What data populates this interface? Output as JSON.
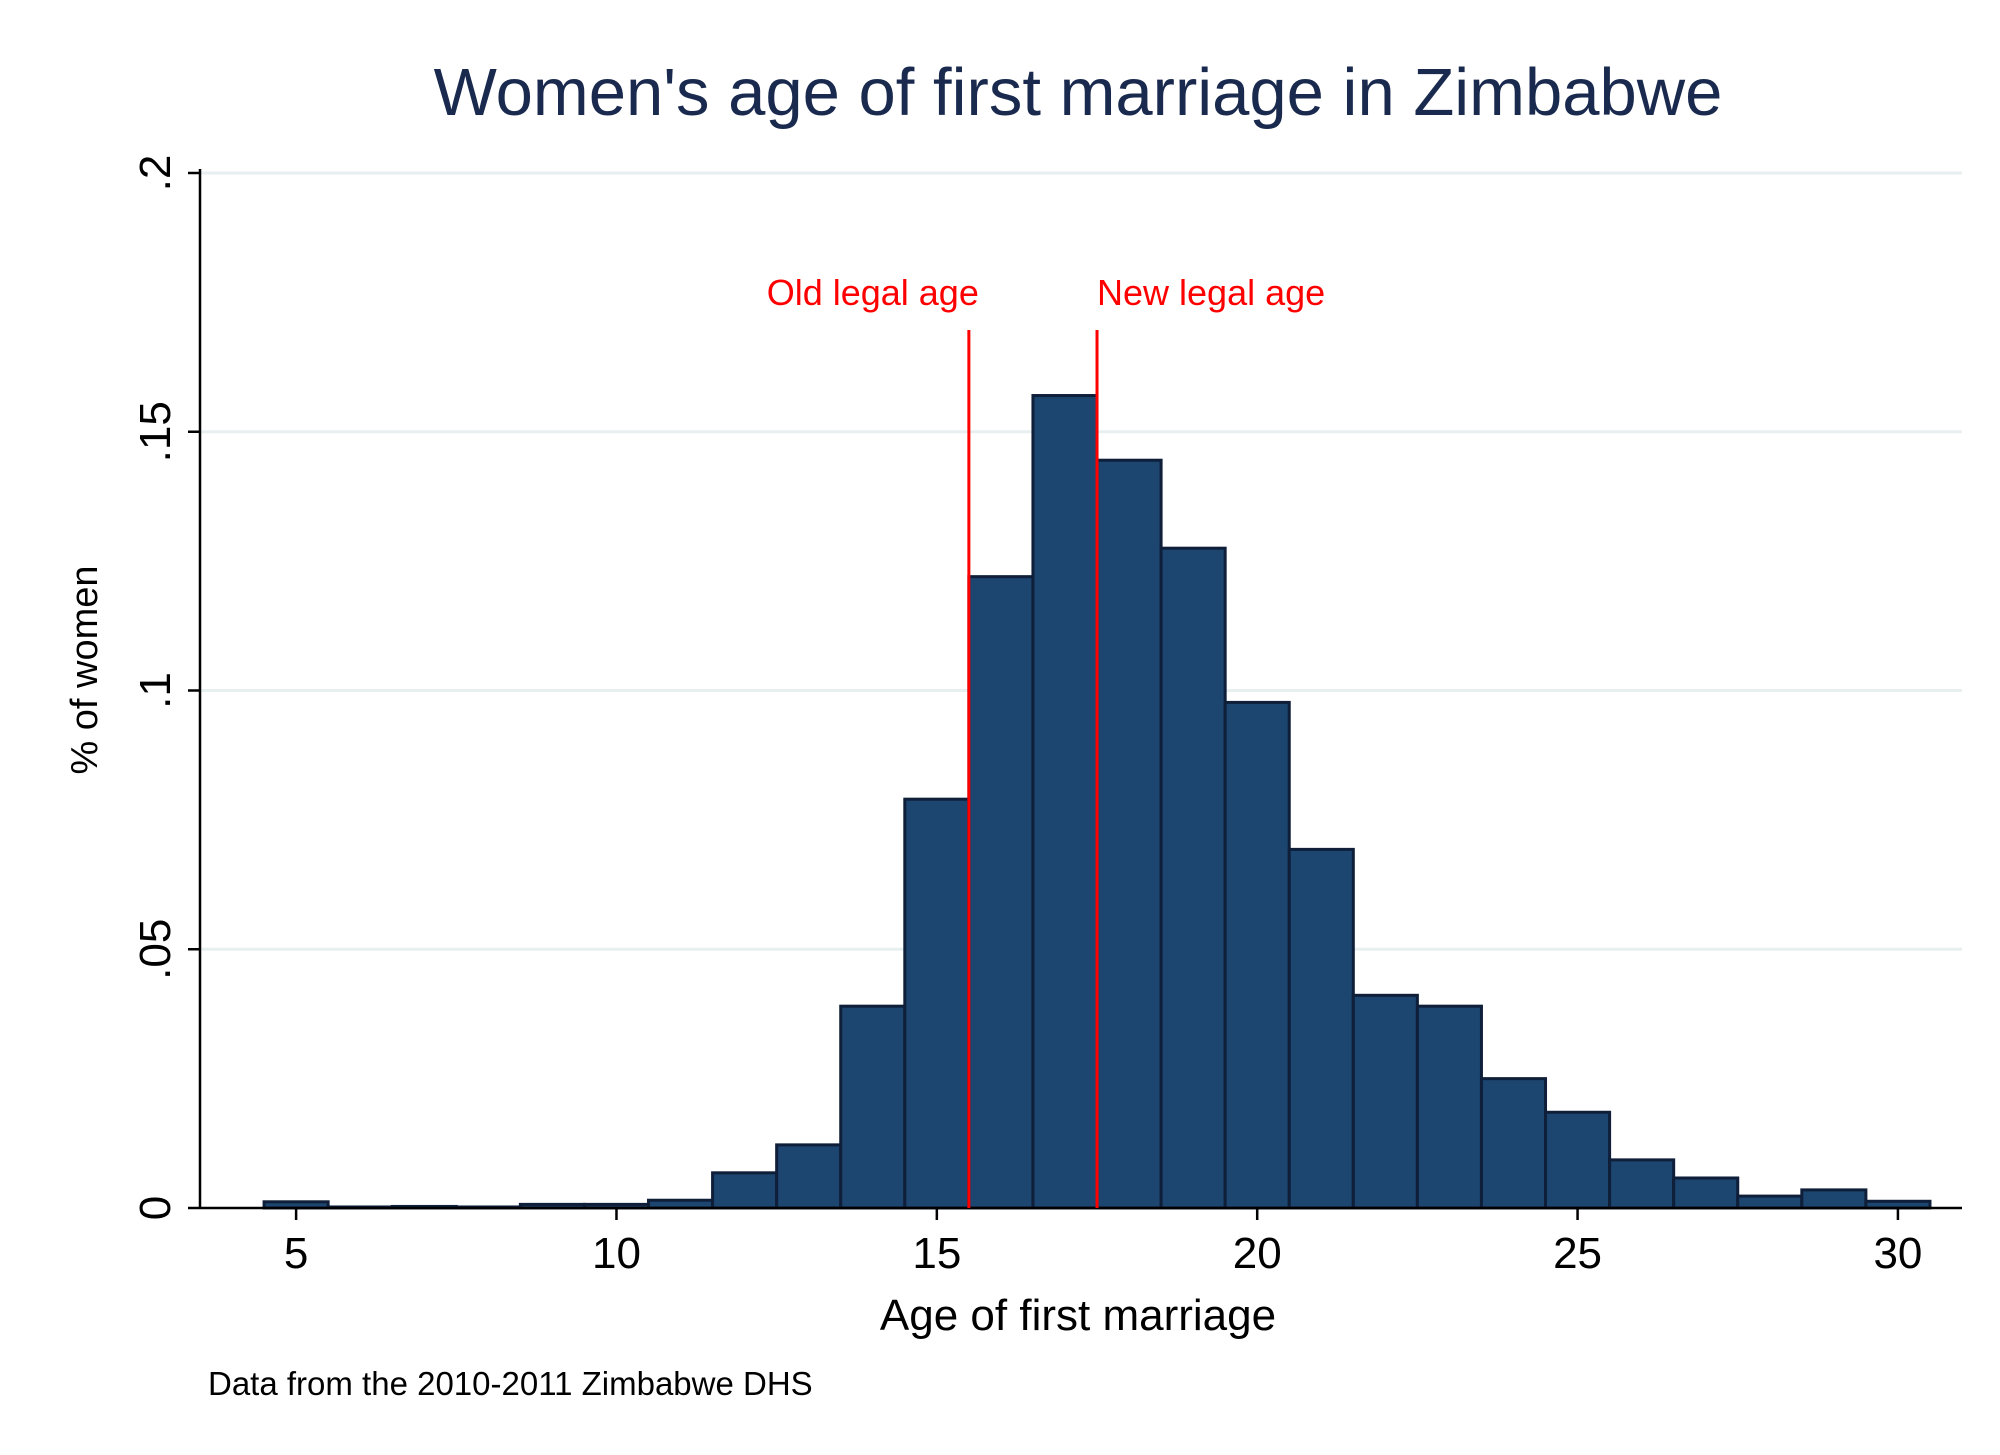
{
  "chart_data": {
    "type": "bar",
    "title": "Women's age of first marriage in Zimbabwe",
    "xlabel": "Age of first marriage",
    "ylabel": "% of women",
    "note": "Data from the 2010-2011 Zimbabwe DHS",
    "xlim": [
      3.5,
      31
    ],
    "ylim": [
      0,
      0.2
    ],
    "xticks": [
      5,
      10,
      15,
      20,
      25,
      30
    ],
    "xtick_labels": [
      "5",
      "10",
      "15",
      "20",
      "25",
      "30"
    ],
    "yticks": [
      0,
      0.05,
      0.1,
      0.15,
      0.2
    ],
    "ytick_labels": [
      "0",
      ".05",
      ".1",
      ".15",
      ".2"
    ],
    "grid": true,
    "bin_width": 1,
    "bins": [
      {
        "x": 5,
        "value": 0.0012
      },
      {
        "x": 6,
        "value": 0.0002
      },
      {
        "x": 7,
        "value": 0.0003
      },
      {
        "x": 8,
        "value": 0.0002
      },
      {
        "x": 9,
        "value": 0.0007
      },
      {
        "x": 10,
        "value": 0.0007
      },
      {
        "x": 11,
        "value": 0.0015
      },
      {
        "x": 12,
        "value": 0.0068
      },
      {
        "x": 13,
        "value": 0.0122
      },
      {
        "x": 14,
        "value": 0.039
      },
      {
        "x": 15,
        "value": 0.079
      },
      {
        "x": 16,
        "value": 0.122
      },
      {
        "x": 17,
        "value": 0.157
      },
      {
        "x": 18,
        "value": 0.1445
      },
      {
        "x": 19,
        "value": 0.1275
      },
      {
        "x": 20,
        "value": 0.0977
      },
      {
        "x": 21,
        "value": 0.0693
      },
      {
        "x": 22,
        "value": 0.0411
      },
      {
        "x": 23,
        "value": 0.039
      },
      {
        "x": 24,
        "value": 0.025
      },
      {
        "x": 25,
        "value": 0.0185
      },
      {
        "x": 26,
        "value": 0.0093
      },
      {
        "x": 27,
        "value": 0.0058
      },
      {
        "x": 28,
        "value": 0.0023
      },
      {
        "x": 29,
        "value": 0.0035
      },
      {
        "x": 30,
        "value": 0.0013
      }
    ],
    "reference_lines": [
      {
        "x": 15.5,
        "label": "Old legal age"
      },
      {
        "x": 17.5,
        "label": "New legal age"
      }
    ],
    "colors": {
      "bar_fill": "#1c456f",
      "bar_edge": "#0f1f3a",
      "reference_line": "#ff0000",
      "grid": "#e8eff0",
      "title": "#1a2a4f"
    }
  }
}
